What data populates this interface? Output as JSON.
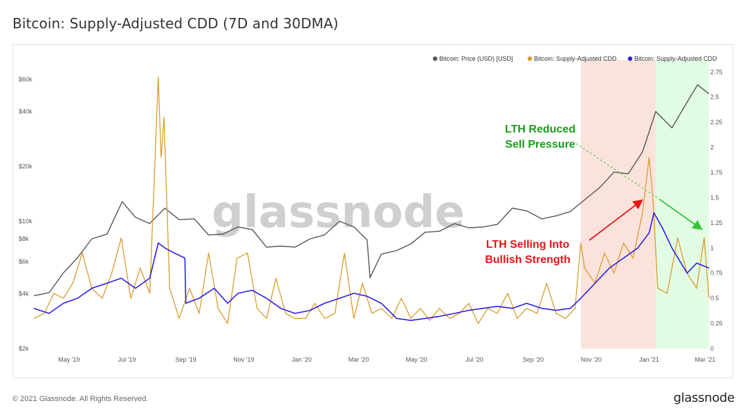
{
  "title": "Bitcoin: Supply-Adjusted CDD (7D and 30DMA)",
  "footer": {
    "copyright": "© 2021 Glassnode. All Rights Reserved.",
    "logo": "glassnode"
  },
  "watermark": "glassnode",
  "colors": {
    "price": "#555555",
    "cdd7d": "#d99b2b",
    "cdd30d": "#2b1ee6",
    "red_zone": "#fbe3dc",
    "green_zone": "#e2fbe3",
    "red_text": "#e51616",
    "green_text": "#1a9d1a"
  },
  "chart_data": {
    "type": "line",
    "title": "Bitcoin: Supply-Adjusted CDD (7D and 30DMA)",
    "x_ticks": [
      "May '19",
      "Jul '19",
      "Sep '19",
      "Nov '19",
      "Jan '20",
      "Mar '20",
      "May '20",
      "Jul '20",
      "Sep '20",
      "Nov '20",
      "Jan '21",
      "Mar '21"
    ],
    "x_range": [
      "2019-03-25",
      "2021-03-05"
    ],
    "y_left": {
      "scale": "log",
      "ticks": [
        "$2k",
        "$4k",
        "$6k",
        "$8k",
        "$10k",
        "$20k",
        "$40k",
        "$60k"
      ],
      "tick_values": [
        2000,
        4000,
        6000,
        8000,
        10000,
        20000,
        40000,
        60000
      ],
      "range": [
        2000,
        60000
      ]
    },
    "y_right": {
      "ticks": [
        "0",
        "0.25",
        "0.5",
        "0.75",
        "1",
        "1.25",
        "1.5",
        "1.75",
        "2",
        "2.25",
        "2.5",
        "2.75"
      ],
      "range": [
        0,
        2.8
      ]
    },
    "legend": [
      "Bitcoin: Price (USD) [USD]",
      "Bitcoin: Supply-Adjusted CDD",
      "Bitcoin: Supply-Adjusted CDD"
    ],
    "legend_position": "top-right",
    "shaded_regions": [
      {
        "from": "2020-10-21",
        "to": "2021-01-08",
        "color": "red"
      },
      {
        "from": "2021-01-08",
        "to": "2021-03-05",
        "color": "green"
      }
    ],
    "annotations": [
      {
        "text_lines": [
          "LTH Reduced",
          "Sell Pressure"
        ],
        "color": "green"
      },
      {
        "text_lines": [
          "LTH Selling Into",
          "Bullish Strength"
        ],
        "color": "red"
      }
    ],
    "series": [
      {
        "name": "Bitcoin: Price (USD) [USD]",
        "axis": "left",
        "x": [
          "2019-03-25",
          "2019-04-10",
          "2019-04-25",
          "2019-05-10",
          "2019-05-25",
          "2019-06-10",
          "2019-06-26",
          "2019-07-10",
          "2019-07-25",
          "2019-08-10",
          "2019-08-25",
          "2019-09-10",
          "2019-09-25",
          "2019-10-10",
          "2019-10-26",
          "2019-11-10",
          "2019-11-25",
          "2019-12-10",
          "2019-12-25",
          "2020-01-10",
          "2020-01-25",
          "2020-02-10",
          "2020-02-25",
          "2020-03-10",
          "2020-03-13",
          "2020-03-25",
          "2020-04-10",
          "2020-04-25",
          "2020-05-10",
          "2020-05-25",
          "2020-06-10",
          "2020-06-25",
          "2020-07-10",
          "2020-07-25",
          "2020-08-10",
          "2020-08-25",
          "2020-09-10",
          "2020-09-25",
          "2020-10-10",
          "2020-10-25",
          "2020-11-10",
          "2020-11-25",
          "2020-12-10",
          "2020-12-25",
          "2021-01-08",
          "2021-01-25",
          "2021-02-10",
          "2021-02-21",
          "2021-03-05"
        ],
        "values": [
          3900,
          4050,
          5200,
          6300,
          8000,
          8500,
          12800,
          10500,
          9700,
          11800,
          10200,
          10300,
          8400,
          8500,
          9300,
          9000,
          7200,
          7300,
          7200,
          8000,
          8400,
          10000,
          9300,
          7900,
          4900,
          6600,
          6900,
          7500,
          8700,
          8800,
          9700,
          9200,
          9300,
          9600,
          11800,
          11400,
          10300,
          10700,
          11300,
          13100,
          15300,
          18600,
          18200,
          24000,
          40000,
          32500,
          45000,
          56000,
          50000
        ]
      },
      {
        "name": "Bitcoin: Supply-Adjusted CDD",
        "axis": "right",
        "x": [
          "2019-03-25",
          "2019-04-05",
          "2019-04-15",
          "2019-04-25",
          "2019-05-05",
          "2019-05-15",
          "2019-05-25",
          "2019-06-05",
          "2019-06-15",
          "2019-06-25",
          "2019-07-05",
          "2019-07-15",
          "2019-07-25",
          "2019-08-03",
          "2019-08-06",
          "2019-08-09",
          "2019-08-15",
          "2019-08-25",
          "2019-09-05",
          "2019-09-15",
          "2019-09-25",
          "2019-10-05",
          "2019-10-15",
          "2019-10-25",
          "2019-11-05",
          "2019-11-15",
          "2019-11-25",
          "2019-12-05",
          "2019-12-15",
          "2019-12-25",
          "2020-01-05",
          "2020-01-15",
          "2020-01-25",
          "2020-02-05",
          "2020-02-15",
          "2020-02-25",
          "2020-03-05",
          "2020-03-15",
          "2020-03-25",
          "2020-04-05",
          "2020-04-15",
          "2020-04-25",
          "2020-05-05",
          "2020-05-15",
          "2020-05-25",
          "2020-06-05",
          "2020-06-15",
          "2020-06-25",
          "2020-07-05",
          "2020-07-15",
          "2020-07-25",
          "2020-08-05",
          "2020-08-15",
          "2020-08-25",
          "2020-09-05",
          "2020-09-15",
          "2020-09-25",
          "2020-10-05",
          "2020-10-15",
          "2020-10-21",
          "2020-10-25",
          "2020-11-05",
          "2020-11-15",
          "2020-11-25",
          "2020-12-05",
          "2020-12-15",
          "2020-12-25",
          "2021-01-01",
          "2021-01-05",
          "2021-01-10",
          "2021-01-20",
          "2021-01-31",
          "2021-02-10",
          "2021-02-20",
          "2021-02-28",
          "2021-03-05"
        ],
        "values": [
          0.3,
          0.35,
          0.55,
          0.5,
          0.65,
          0.95,
          0.6,
          0.5,
          0.75,
          1.1,
          0.5,
          0.8,
          0.55,
          2.7,
          1.9,
          2.3,
          0.6,
          0.3,
          0.6,
          0.35,
          0.95,
          0.4,
          0.25,
          0.9,
          0.95,
          0.4,
          0.3,
          0.7,
          0.35,
          0.3,
          0.3,
          0.45,
          0.3,
          0.35,
          0.95,
          0.3,
          0.65,
          0.35,
          0.4,
          0.3,
          0.5,
          0.3,
          0.4,
          0.28,
          0.4,
          0.3,
          0.35,
          0.45,
          0.25,
          0.4,
          0.35,
          0.55,
          0.3,
          0.4,
          0.35,
          0.65,
          0.35,
          0.3,
          0.4,
          1.05,
          0.8,
          0.65,
          0.95,
          0.75,
          1.05,
          0.9,
          1.35,
          1.9,
          1.5,
          0.6,
          0.55,
          1.1,
          0.75,
          0.6,
          1.1,
          0.5
        ]
      },
      {
        "name": "Bitcoin: Supply-Adjusted CDD",
        "axis": "right",
        "x": [
          "2019-03-25",
          "2019-04-10",
          "2019-04-25",
          "2019-05-10",
          "2019-05-25",
          "2019-06-10",
          "2019-06-25",
          "2019-07-10",
          "2019-07-25",
          "2019-08-03",
          "2019-08-10",
          "2019-08-20",
          "2019-08-31",
          "2019-09-01",
          "2019-09-15",
          "2019-10-01",
          "2019-10-15",
          "2019-10-26",
          "2019-11-10",
          "2019-11-25",
          "2019-12-10",
          "2019-12-25",
          "2020-01-10",
          "2020-01-25",
          "2020-02-10",
          "2020-02-25",
          "2020-03-10",
          "2020-03-25",
          "2020-04-10",
          "2020-04-25",
          "2020-05-10",
          "2020-05-25",
          "2020-06-10",
          "2020-06-25",
          "2020-07-10",
          "2020-07-25",
          "2020-08-10",
          "2020-08-25",
          "2020-09-10",
          "2020-09-25",
          "2020-10-10",
          "2020-10-21",
          "2020-11-05",
          "2020-11-20",
          "2020-12-05",
          "2020-12-20",
          "2021-01-01",
          "2021-01-06",
          "2021-01-15",
          "2021-01-25",
          "2021-02-10",
          "2021-02-20",
          "2021-03-05"
        ],
        "values": [
          0.4,
          0.35,
          0.45,
          0.5,
          0.6,
          0.65,
          0.7,
          0.6,
          0.7,
          1.05,
          1.0,
          0.95,
          0.9,
          0.45,
          0.5,
          0.6,
          0.45,
          0.55,
          0.58,
          0.5,
          0.4,
          0.35,
          0.38,
          0.45,
          0.5,
          0.55,
          0.52,
          0.45,
          0.3,
          0.28,
          0.3,
          0.32,
          0.35,
          0.38,
          0.4,
          0.42,
          0.4,
          0.45,
          0.4,
          0.38,
          0.4,
          0.5,
          0.65,
          0.8,
          0.9,
          1.0,
          1.15,
          1.35,
          1.2,
          1.0,
          0.75,
          0.85,
          0.8
        ]
      }
    ]
  }
}
